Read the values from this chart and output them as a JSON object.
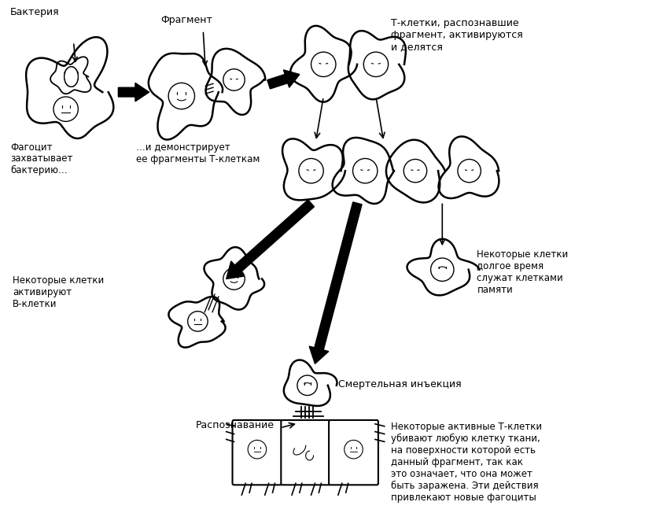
{
  "bg_color": "#ffffff",
  "line_color": "#000000",
  "labels": {
    "bacteria": "Бактерия",
    "fragment": "Фрагмент",
    "phagocyte_text": "Фагоцит\nзахватывает\nбактерию…",
    "demonstrates": "…и демонстрирует\nее фрагменты Т-клеткам",
    "t_cells": "Т-клетки, распознавшие\nфрагмент, активируются\nи делятся",
    "some_activate": "Некоторые клетки\nактивируют\nВ-клетки",
    "memory": "Некоторые клетки\nдолгое время\nслужат клетками\nпамяти",
    "recognition": "Распознавание",
    "lethal": "Смертельная инъекция",
    "some_kill": "Некоторые активные Т-клетки\nубивают любую клетку ткани,\nна поверхности которой есть\nданный фрагмент, так как\nэто означает, что она может\nбыть заражена. Эти действия\nпривлекают новые фагоциты"
  }
}
